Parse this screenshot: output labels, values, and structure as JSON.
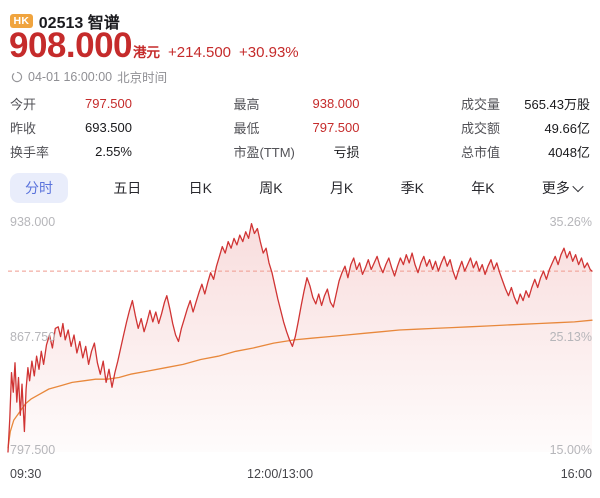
{
  "header": {
    "market_badge": "HK",
    "code_and_name": "02513 智谱",
    "price": "908.000",
    "currency_label": "港元",
    "change_amount": "+214.500",
    "change_percent": "+30.93%",
    "timestamp": "04-01 16:00:00",
    "timezone_label": "北京时间"
  },
  "stats": {
    "columns": [
      {
        "rows": [
          {
            "label": "今开",
            "value": "797.500"
          },
          {
            "label": "昨收",
            "value": "693.500"
          },
          {
            "label": "换手率",
            "value": "2.55%"
          }
        ]
      },
      {
        "rows": [
          {
            "label": "最高",
            "value": "938.000"
          },
          {
            "label": "最低",
            "value": "797.500"
          },
          {
            "label": "市盈(TTM)",
            "value": "亏损"
          }
        ]
      },
      {
        "rows": [
          {
            "label": "成交量",
            "value": "565.43万股"
          },
          {
            "label": "成交额",
            "value": "49.66亿"
          },
          {
            "label": "总市值",
            "value": "4048亿"
          }
        ]
      }
    ]
  },
  "tabs": {
    "items": [
      {
        "label": "分时",
        "active": true
      },
      {
        "label": "五日",
        "active": false
      },
      {
        "label": "日K",
        "active": false
      },
      {
        "label": "周K",
        "active": false
      },
      {
        "label": "月K",
        "active": false
      },
      {
        "label": "季K",
        "active": false
      },
      {
        "label": "年K",
        "active": false
      },
      {
        "label": "更多",
        "active": false,
        "has_chevron": true
      }
    ]
  },
  "colors": {
    "up_red_text": "#c52b2b",
    "price_line": "#d03434",
    "avg_line": "#e8883c",
    "dashed_line": "#ef9a8f",
    "active_tab_text": "#5a73dc",
    "active_tab_bg": "#e9edfb",
    "badge_bg": "#f0a43e"
  },
  "chart_data": {
    "type": "line",
    "title": "分时 intraday price chart",
    "x_axis_labels": [
      "09:30",
      "12:00/13:00",
      "16:00"
    ],
    "y_axis_left_labels": [
      "938.000",
      "867.750",
      "797.500"
    ],
    "y_axis_right_labels": [
      "35.26%",
      "25.13%",
      "15.00%"
    ],
    "y_range": [
      797.5,
      938.0
    ],
    "prev_close": 693.5,
    "current_price_line": 908.0,
    "grid": "none, single dashed line at latest price",
    "legend_position": "none",
    "fill": {
      "color": "#dd5555",
      "top_opacity": 0.2,
      "bottom_opacity": 0.02
    },
    "series": [
      {
        "name": "price",
        "color": "#d03434",
        "width": 1.3,
        "points": [
          [
            0.0,
            797.5
          ],
          [
            0.003,
            818
          ],
          [
            0.006,
            846
          ],
          [
            0.009,
            834
          ],
          [
            0.012,
            852
          ],
          [
            0.015,
            828
          ],
          [
            0.018,
            843
          ],
          [
            0.021,
            820
          ],
          [
            0.024,
            839
          ],
          [
            0.028,
            810
          ],
          [
            0.031,
            836
          ],
          [
            0.034,
            849
          ],
          [
            0.037,
            841
          ],
          [
            0.041,
            853
          ],
          [
            0.045,
            844
          ],
          [
            0.049,
            856
          ],
          [
            0.053,
            848
          ],
          [
            0.057,
            859
          ],
          [
            0.061,
            851
          ],
          [
            0.066,
            863
          ],
          [
            0.071,
            869
          ],
          [
            0.076,
            861
          ],
          [
            0.081,
            873
          ],
          [
            0.086,
            874
          ],
          [
            0.09,
            868
          ],
          [
            0.094,
            876
          ],
          [
            0.098,
            866
          ],
          [
            0.103,
            872
          ],
          [
            0.108,
            862
          ],
          [
            0.113,
            869
          ],
          [
            0.118,
            858
          ],
          [
            0.123,
            865
          ],
          [
            0.128,
            855
          ],
          [
            0.133,
            862
          ],
          [
            0.138,
            851
          ],
          [
            0.143,
            859
          ],
          [
            0.148,
            864
          ],
          [
            0.153,
            852
          ],
          [
            0.158,
            845
          ],
          [
            0.163,
            853
          ],
          [
            0.168,
            840
          ],
          [
            0.173,
            848
          ],
          [
            0.178,
            837
          ],
          [
            0.183,
            846
          ],
          [
            0.188,
            853
          ],
          [
            0.193,
            861
          ],
          [
            0.198,
            869
          ],
          [
            0.203,
            877
          ],
          [
            0.208,
            884
          ],
          [
            0.213,
            890
          ],
          [
            0.218,
            881
          ],
          [
            0.223,
            873
          ],
          [
            0.228,
            879
          ],
          [
            0.233,
            871
          ],
          [
            0.238,
            877
          ],
          [
            0.243,
            884
          ],
          [
            0.248,
            877
          ],
          [
            0.253,
            883
          ],
          [
            0.258,
            876
          ],
          [
            0.263,
            882
          ],
          [
            0.268,
            889
          ],
          [
            0.272,
            893
          ],
          [
            0.277,
            885
          ],
          [
            0.282,
            876
          ],
          [
            0.287,
            869
          ],
          [
            0.292,
            865
          ],
          [
            0.297,
            873
          ],
          [
            0.302,
            879
          ],
          [
            0.307,
            885
          ],
          [
            0.312,
            890
          ],
          [
            0.317,
            883
          ],
          [
            0.322,
            889
          ],
          [
            0.327,
            895
          ],
          [
            0.332,
            900
          ],
          [
            0.337,
            894
          ],
          [
            0.342,
            901
          ],
          [
            0.347,
            907
          ],
          [
            0.352,
            903
          ],
          [
            0.357,
            911
          ],
          [
            0.362,
            917
          ],
          [
            0.367,
            923
          ],
          [
            0.372,
            919
          ],
          [
            0.377,
            926
          ],
          [
            0.382,
            922
          ],
          [
            0.387,
            928
          ],
          [
            0.392,
            924
          ],
          [
            0.397,
            930
          ],
          [
            0.402,
            926
          ],
          [
            0.407,
            932
          ],
          [
            0.412,
            928
          ],
          [
            0.417,
            937
          ],
          [
            0.422,
            931
          ],
          [
            0.427,
            934
          ],
          [
            0.432,
            926
          ],
          [
            0.437,
            919
          ],
          [
            0.442,
            922
          ],
          [
            0.447,
            913
          ],
          [
            0.452,
            907
          ],
          [
            0.457,
            899
          ],
          [
            0.462,
            891
          ],
          [
            0.467,
            884
          ],
          [
            0.472,
            877
          ],
          [
            0.477,
            871
          ],
          [
            0.482,
            866
          ],
          [
            0.487,
            862
          ],
          [
            0.492,
            868
          ],
          [
            0.497,
            877
          ],
          [
            0.502,
            887
          ],
          [
            0.507,
            896
          ],
          [
            0.512,
            904
          ],
          [
            0.517,
            899
          ],
          [
            0.522,
            892
          ],
          [
            0.527,
            888
          ],
          [
            0.532,
            894
          ],
          [
            0.537,
            887
          ],
          [
            0.542,
            893
          ],
          [
            0.547,
            897
          ],
          [
            0.552,
            889
          ],
          [
            0.557,
            886
          ],
          [
            0.562,
            894
          ],
          [
            0.567,
            902
          ],
          [
            0.572,
            907
          ],
          [
            0.577,
            911
          ],
          [
            0.582,
            904
          ],
          [
            0.587,
            912
          ],
          [
            0.592,
            916
          ],
          [
            0.597,
            909
          ],
          [
            0.602,
            913
          ],
          [
            0.607,
            906
          ],
          [
            0.612,
            910
          ],
          [
            0.617,
            915
          ],
          [
            0.622,
            909
          ],
          [
            0.627,
            913
          ],
          [
            0.632,
            917
          ],
          [
            0.637,
            911
          ],
          [
            0.642,
            907
          ],
          [
            0.647,
            912
          ],
          [
            0.652,
            916
          ],
          [
            0.657,
            910
          ],
          [
            0.662,
            905
          ],
          [
            0.667,
            911
          ],
          [
            0.672,
            916
          ],
          [
            0.677,
            912
          ],
          [
            0.682,
            918
          ],
          [
            0.687,
            913
          ],
          [
            0.692,
            919
          ],
          [
            0.697,
            912
          ],
          [
            0.702,
            907
          ],
          [
            0.707,
            913
          ],
          [
            0.712,
            917
          ],
          [
            0.717,
            911
          ],
          [
            0.722,
            915
          ],
          [
            0.727,
            909
          ],
          [
            0.732,
            914
          ],
          [
            0.737,
            908
          ],
          [
            0.742,
            913
          ],
          [
            0.747,
            917
          ],
          [
            0.752,
            911
          ],
          [
            0.757,
            915
          ],
          [
            0.762,
            908
          ],
          [
            0.767,
            903
          ],
          [
            0.772,
            909
          ],
          [
            0.777,
            914
          ],
          [
            0.782,
            908
          ],
          [
            0.787,
            912
          ],
          [
            0.792,
            916
          ],
          [
            0.797,
            910
          ],
          [
            0.802,
            914
          ],
          [
            0.807,
            908
          ],
          [
            0.812,
            912
          ],
          [
            0.817,
            906
          ],
          [
            0.822,
            911
          ],
          [
            0.827,
            915
          ],
          [
            0.832,
            909
          ],
          [
            0.837,
            913
          ],
          [
            0.842,
            907
          ],
          [
            0.847,
            902
          ],
          [
            0.852,
            897
          ],
          [
            0.857,
            893
          ],
          [
            0.862,
            898
          ],
          [
            0.867,
            892
          ],
          [
            0.872,
            888
          ],
          [
            0.877,
            894
          ],
          [
            0.882,
            890
          ],
          [
            0.887,
            896
          ],
          [
            0.892,
            892
          ],
          [
            0.897,
            898
          ],
          [
            0.902,
            903
          ],
          [
            0.907,
            898
          ],
          [
            0.912,
            904
          ],
          [
            0.917,
            908
          ],
          [
            0.922,
            903
          ],
          [
            0.927,
            909
          ],
          [
            0.932,
            913
          ],
          [
            0.937,
            917
          ],
          [
            0.942,
            912
          ],
          [
            0.947,
            918
          ],
          [
            0.952,
            922
          ],
          [
            0.957,
            916
          ],
          [
            0.962,
            920
          ],
          [
            0.967,
            914
          ],
          [
            0.972,
            918
          ],
          [
            0.977,
            912
          ],
          [
            0.982,
            916
          ],
          [
            0.987,
            910
          ],
          [
            0.992,
            913
          ],
          [
            0.997,
            909
          ],
          [
            1.0,
            908
          ]
        ]
      },
      {
        "name": "average_price",
        "color": "#e8883c",
        "width": 1.3,
        "points": [
          [
            0.0,
            800
          ],
          [
            0.004,
            810
          ],
          [
            0.01,
            817
          ],
          [
            0.02,
            822
          ],
          [
            0.03,
            827
          ],
          [
            0.04,
            830
          ],
          [
            0.055,
            833
          ],
          [
            0.07,
            836
          ],
          [
            0.09,
            838
          ],
          [
            0.11,
            840
          ],
          [
            0.13,
            841
          ],
          [
            0.15,
            842
          ],
          [
            0.17,
            842
          ],
          [
            0.19,
            843
          ],
          [
            0.21,
            845
          ],
          [
            0.24,
            847
          ],
          [
            0.27,
            849
          ],
          [
            0.3,
            851
          ],
          [
            0.33,
            854
          ],
          [
            0.36,
            856
          ],
          [
            0.39,
            859
          ],
          [
            0.42,
            861
          ],
          [
            0.455,
            864
          ],
          [
            0.49,
            866
          ],
          [
            0.52,
            867
          ],
          [
            0.55,
            868
          ],
          [
            0.58,
            869
          ],
          [
            0.61,
            870
          ],
          [
            0.64,
            871
          ],
          [
            0.67,
            872
          ],
          [
            0.7,
            872.5
          ],
          [
            0.73,
            873
          ],
          [
            0.76,
            873.5
          ],
          [
            0.79,
            874
          ],
          [
            0.82,
            874.5
          ],
          [
            0.85,
            875
          ],
          [
            0.88,
            875.5
          ],
          [
            0.91,
            876
          ],
          [
            0.94,
            876.5
          ],
          [
            0.97,
            877
          ],
          [
            1.0,
            878
          ]
        ]
      }
    ]
  }
}
